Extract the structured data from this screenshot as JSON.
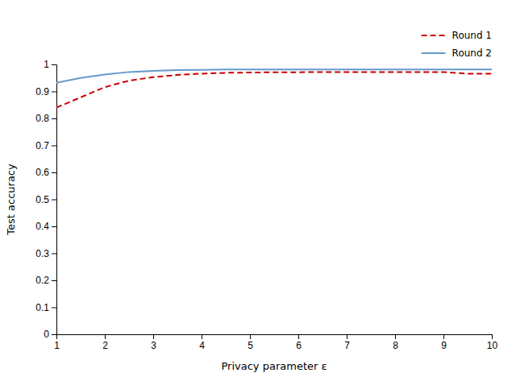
{
  "chart_data": {
    "type": "line",
    "x": [
      1,
      1.5,
      2,
      2.5,
      3,
      3.5,
      4,
      4.5,
      5,
      5.5,
      6,
      6.5,
      7,
      7.5,
      8,
      8.5,
      9,
      9.5,
      10
    ],
    "series": [
      {
        "name": "Round 1",
        "color": "#cc0000",
        "line_style": "dashed",
        "values": [
          0.84,
          0.878,
          0.916,
          0.94,
          0.953,
          0.961,
          0.966,
          0.969,
          0.97,
          0.971,
          0.971,
          0.972,
          0.972,
          0.972,
          0.972,
          0.972,
          0.972,
          0.966,
          0.966
        ]
      },
      {
        "name": "Round 2",
        "color": "#6699cc",
        "line_style": "solid",
        "values": [
          0.932,
          0.95,
          0.963,
          0.972,
          0.976,
          0.979,
          0.98,
          0.981,
          0.981,
          0.981,
          0.981,
          0.981,
          0.981,
          0.981,
          0.981,
          0.981,
          0.981,
          0.981,
          0.981
        ]
      }
    ],
    "xlabel": "Privacy parameter ε",
    "ylabel": "Test accuracy",
    "xlim": [
      1,
      10
    ],
    "ylim": [
      0,
      1
    ],
    "xticks": [
      1,
      2,
      3,
      4,
      5,
      6,
      7,
      8,
      9,
      10
    ],
    "yticks": [
      0,
      0.1,
      0.2,
      0.3,
      0.4,
      0.5,
      0.6,
      0.7,
      0.8,
      0.9,
      1
    ],
    "legend": "upper right",
    "grid": false
  }
}
